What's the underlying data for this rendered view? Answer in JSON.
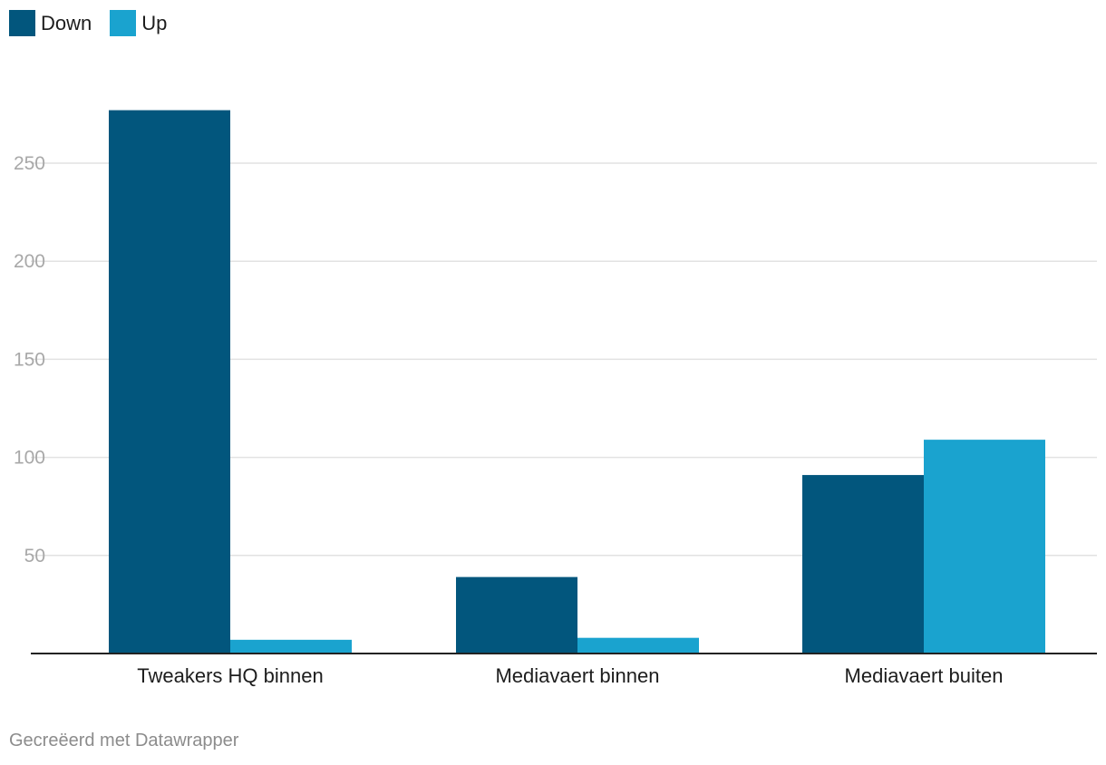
{
  "legend": {
    "items": [
      {
        "label": "Down",
        "color": "#02567d"
      },
      {
        "label": "Up",
        "color": "#1aa3cf"
      }
    ]
  },
  "footer": {
    "credit": "Gecreëerd met Datawrapper"
  },
  "chart_data": {
    "type": "bar",
    "categories": [
      "Tweakers HQ binnen",
      "Mediavaert binnen",
      "Mediavaert buiten"
    ],
    "series": [
      {
        "name": "Down",
        "color": "#02567d",
        "values": [
          277,
          39,
          91
        ]
      },
      {
        "name": "Up",
        "color": "#1aa3cf",
        "values": [
          7,
          8,
          109
        ]
      }
    ],
    "yticks": [
      50,
      100,
      150,
      200,
      250
    ],
    "ylim": [
      0,
      290
    ],
    "grid": true,
    "legend_position": "top-left"
  }
}
